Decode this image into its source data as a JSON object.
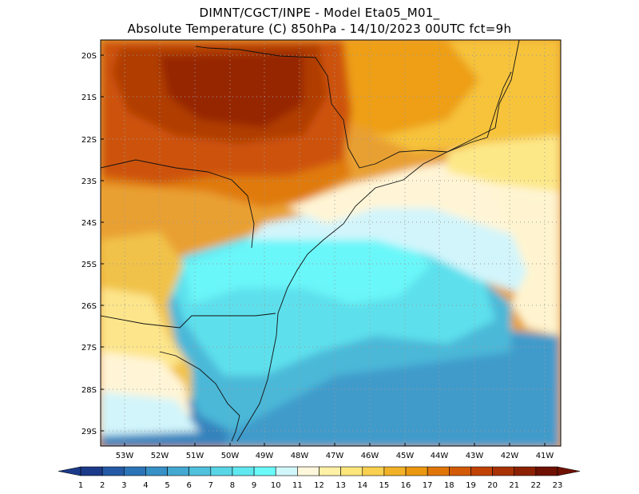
{
  "title": {
    "line1": "DIMNT/CGCT/INPE  -   Model Eta05_M01_",
    "line2": "Absolute Temperature (C) 850hPa  -   14/10/2023 00UTC fct=9h"
  },
  "map": {
    "lat_labels": [
      "20S",
      "21S",
      "22S",
      "23S",
      "24S",
      "25S",
      "26S",
      "27S",
      "28S",
      "29S"
    ],
    "lon_labels": [
      "53W",
      "52W",
      "51W",
      "50W",
      "49W",
      "48W",
      "47W",
      "46W",
      "45W",
      "44W",
      "43W",
      "42W",
      "41W"
    ]
  },
  "colorbar": {
    "labels": [
      "1",
      "2",
      "3",
      "4",
      "5",
      "6",
      "7",
      "8",
      "9",
      "10",
      "11",
      "12",
      "13",
      "14",
      "15",
      "16",
      "17",
      "18",
      "19",
      "20",
      "21",
      "22",
      "23"
    ],
    "colors": [
      "#1c3a8a",
      "#2459a5",
      "#2c74b8",
      "#3790c6",
      "#43a8d2",
      "#4fc1dc",
      "#58d6e6",
      "#5fe8ef",
      "#6afafa",
      "#d2f7fb",
      "#fff7dc",
      "#fff1a6",
      "#fde67a",
      "#f9d04f",
      "#f2b228",
      "#eb9810",
      "#e07608",
      "#d25a06",
      "#c04205",
      "#a83203",
      "#8c2102",
      "#6f1101"
    ]
  }
}
